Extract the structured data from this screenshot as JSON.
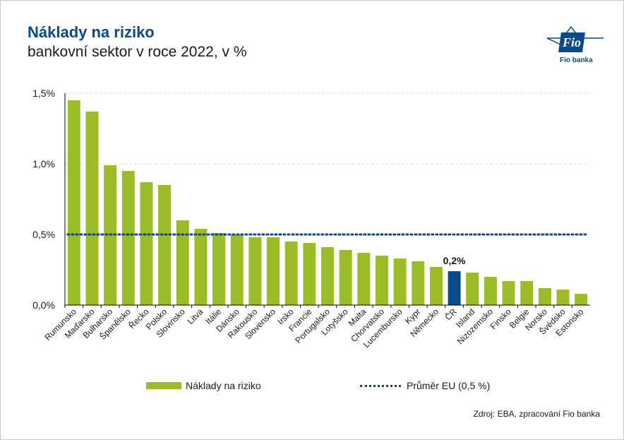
{
  "header": {
    "title": "Náklady na riziko",
    "subtitle": "bankovní sektor v roce 2022, v %",
    "logo_text": "Fio banka",
    "logo_mark": "Fio"
  },
  "colors": {
    "bar": "#9bbb28",
    "highlight_bar": "#0a4a8a",
    "average_line": "#0a4a8a",
    "title": "#0a4a8a"
  },
  "chart_data": {
    "type": "bar",
    "title": "Náklady na riziko",
    "subtitle": "bankovní sektor v roce 2022, v %",
    "categories": [
      "Rumunsko",
      "Maďarsko",
      "Bulharsko",
      "Španělsko",
      "Řecko",
      "Polsko",
      "Slovinsko",
      "Litva",
      "Itálie",
      "Dánsko",
      "Rakousko",
      "Slovensko",
      "Irsko",
      "Francie",
      "Portugalsko",
      "Lotyšsko",
      "Malta",
      "Chorvatsko",
      "Lucembursko",
      "Kypr",
      "Německo",
      "ČR",
      "Island",
      "Nizozemsko",
      "Finsko",
      "Belgie",
      "Norsko",
      "Švédsko",
      "Estonsko"
    ],
    "series": [
      {
        "name": "Náklady na riziko",
        "values": [
          1.45,
          1.37,
          0.99,
          0.95,
          0.87,
          0.85,
          0.6,
          0.54,
          0.51,
          0.5,
          0.48,
          0.48,
          0.45,
          0.44,
          0.41,
          0.39,
          0.37,
          0.35,
          0.33,
          0.31,
          0.27,
          0.24,
          0.23,
          0.2,
          0.17,
          0.17,
          0.12,
          0.11,
          0.08
        ]
      }
    ],
    "highlight": {
      "category": "ČR",
      "label": "0,2%"
    },
    "average": {
      "name": "Průměr EU (0,5 %)",
      "value": 0.5
    },
    "y_ticks": [
      "0,0%",
      "0,5%",
      "1,0%",
      "1,5%"
    ],
    "y_tick_values": [
      0,
      0.5,
      1.0,
      1.5
    ],
    "ylim": [
      0,
      1.5
    ],
    "grid": true,
    "legend_position": "bottom"
  },
  "legend": {
    "bar_label": "Náklady na riziko",
    "line_label": "Průměr EU (0,5 %)"
  },
  "source": "Zdroj: EBA, zpracování Fio banka"
}
